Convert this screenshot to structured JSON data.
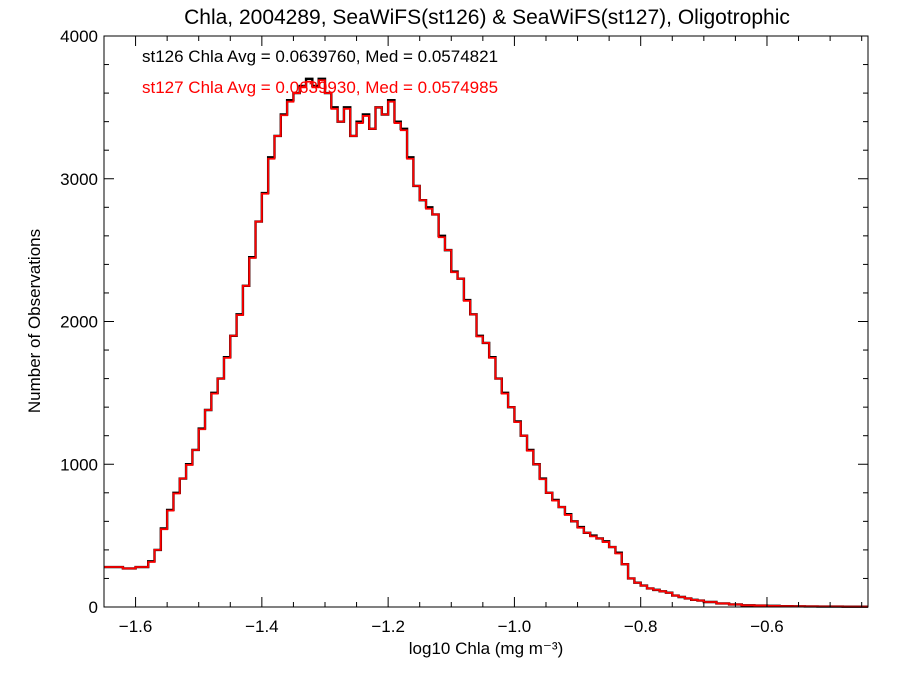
{
  "chart_data": {
    "type": "line",
    "title": "Chla, 2004289, SeaWiFS(st126) & SeaWiFS(st127), Oligotrophic",
    "xlabel": "log10 Chla (mg m⁻³)",
    "ylabel": "Number of Observations",
    "xlim": [
      -1.65,
      -0.44
    ],
    "ylim": [
      0,
      4000
    ],
    "x_ticks": [
      -1.6,
      -1.4,
      -1.2,
      -1.0,
      -0.8,
      -0.6
    ],
    "x_tick_labels": [
      "−1.6",
      "−1.4",
      "−1.2",
      "−1.0",
      "−0.8",
      "−0.6"
    ],
    "y_ticks": [
      0,
      1000,
      2000,
      3000,
      4000
    ],
    "y_tick_labels": [
      "0",
      "1000",
      "2000",
      "3000",
      "4000"
    ],
    "grid": false,
    "annotations": [
      {
        "text": "st126 Chla Avg = 0.0639760, Med = 0.0574821",
        "color": "#000000"
      },
      {
        "text": "st127 Chla Avg = 0.0639930, Med = 0.0574985",
        "color": "#ff0000"
      }
    ],
    "series": [
      {
        "color": "#000000",
        "x": [
          -1.65,
          -1.62,
          -1.6,
          -1.58,
          -1.57,
          -1.56,
          -1.55,
          -1.54,
          -1.53,
          -1.52,
          -1.51,
          -1.5,
          -1.49,
          -1.48,
          -1.47,
          -1.46,
          -1.45,
          -1.44,
          -1.43,
          -1.42,
          -1.41,
          -1.4,
          -1.39,
          -1.38,
          -1.37,
          -1.36,
          -1.35,
          -1.34,
          -1.33,
          -1.32,
          -1.31,
          -1.3,
          -1.29,
          -1.28,
          -1.27,
          -1.26,
          -1.25,
          -1.24,
          -1.23,
          -1.22,
          -1.21,
          -1.2,
          -1.19,
          -1.18,
          -1.17,
          -1.16,
          -1.15,
          -1.14,
          -1.13,
          -1.12,
          -1.11,
          -1.1,
          -1.09,
          -1.08,
          -1.07,
          -1.06,
          -1.05,
          -1.04,
          -1.03,
          -1.02,
          -1.01,
          -1.0,
          -0.99,
          -0.98,
          -0.97,
          -0.96,
          -0.95,
          -0.94,
          -0.93,
          -0.92,
          -0.91,
          -0.9,
          -0.89,
          -0.88,
          -0.87,
          -0.86,
          -0.85,
          -0.84,
          -0.83,
          -0.82,
          -0.81,
          -0.8,
          -0.79,
          -0.78,
          -0.77,
          -0.76,
          -0.75,
          -0.74,
          -0.73,
          -0.72,
          -0.71,
          -0.7,
          -0.68,
          -0.66,
          -0.64,
          -0.62,
          -0.6,
          -0.58,
          -0.56,
          -0.54,
          -0.52,
          -0.5,
          -0.48,
          -0.46,
          -0.44
        ],
        "y": [
          280,
          270,
          280,
          320,
          400,
          550,
          680,
          800,
          900,
          1000,
          1100,
          1250,
          1380,
          1500,
          1600,
          1750,
          1900,
          2050,
          2250,
          2450,
          2700,
          2900,
          3150,
          3300,
          3450,
          3550,
          3600,
          3650,
          3700,
          3650,
          3700,
          3600,
          3500,
          3400,
          3500,
          3300,
          3400,
          3450,
          3350,
          3500,
          3450,
          3550,
          3400,
          3350,
          3150,
          2950,
          2850,
          2800,
          2750,
          2600,
          2500,
          2350,
          2300,
          2150,
          2050,
          1900,
          1850,
          1750,
          1600,
          1500,
          1400,
          1300,
          1200,
          1100,
          1000,
          900,
          800,
          750,
          700,
          650,
          600,
          560,
          520,
          500,
          480,
          460,
          420,
          380,
          300,
          200,
          170,
          150,
          130,
          120,
          110,
          100,
          80,
          70,
          60,
          50,
          45,
          35,
          25,
          18,
          12,
          10,
          8,
          6,
          5,
          4,
          3,
          3,
          2,
          2,
          2
        ]
      },
      {
        "color": "#ff0000",
        "x": [
          -1.65,
          -1.62,
          -1.6,
          -1.58,
          -1.57,
          -1.56,
          -1.55,
          -1.54,
          -1.53,
          -1.52,
          -1.51,
          -1.5,
          -1.49,
          -1.48,
          -1.47,
          -1.46,
          -1.45,
          -1.44,
          -1.43,
          -1.42,
          -1.41,
          -1.4,
          -1.39,
          -1.38,
          -1.37,
          -1.36,
          -1.35,
          -1.34,
          -1.33,
          -1.32,
          -1.31,
          -1.3,
          -1.29,
          -1.28,
          -1.27,
          -1.26,
          -1.25,
          -1.24,
          -1.23,
          -1.22,
          -1.21,
          -1.2,
          -1.19,
          -1.18,
          -1.17,
          -1.16,
          -1.15,
          -1.14,
          -1.13,
          -1.12,
          -1.11,
          -1.1,
          -1.09,
          -1.08,
          -1.07,
          -1.06,
          -1.05,
          -1.04,
          -1.03,
          -1.02,
          -1.01,
          -1.0,
          -0.99,
          -0.98,
          -0.97,
          -0.96,
          -0.95,
          -0.94,
          -0.93,
          -0.92,
          -0.91,
          -0.9,
          -0.89,
          -0.88,
          -0.87,
          -0.86,
          -0.85,
          -0.84,
          -0.83,
          -0.82,
          -0.81,
          -0.8,
          -0.79,
          -0.78,
          -0.77,
          -0.76,
          -0.75,
          -0.74,
          -0.73,
          -0.72,
          -0.71,
          -0.7,
          -0.68,
          -0.66,
          -0.64,
          -0.62,
          -0.6,
          -0.58,
          -0.56,
          -0.54,
          -0.52,
          -0.5,
          -0.48,
          -0.46,
          -0.44
        ],
        "y": [
          280,
          270,
          280,
          315,
          400,
          545,
          675,
          795,
          900,
          995,
          1100,
          1245,
          1380,
          1495,
          1600,
          1745,
          1900,
          2045,
          2250,
          2445,
          2700,
          2895,
          3140,
          3300,
          3445,
          3540,
          3600,
          3640,
          3680,
          3640,
          3690,
          3600,
          3490,
          3400,
          3490,
          3300,
          3390,
          3440,
          3350,
          3500,
          3450,
          3540,
          3390,
          3340,
          3140,
          2950,
          2850,
          2790,
          2750,
          2590,
          2500,
          2345,
          2300,
          2145,
          2050,
          1895,
          1850,
          1745,
          1600,
          1495,
          1400,
          1295,
          1200,
          1095,
          1000,
          895,
          800,
          745,
          700,
          645,
          600,
          555,
          520,
          495,
          480,
          455,
          420,
          375,
          300,
          200,
          170,
          150,
          130,
          120,
          110,
          100,
          80,
          70,
          60,
          50,
          45,
          35,
          25,
          18,
          12,
          10,
          8,
          6,
          5,
          4,
          3,
          3,
          2,
          2,
          2
        ]
      }
    ]
  }
}
